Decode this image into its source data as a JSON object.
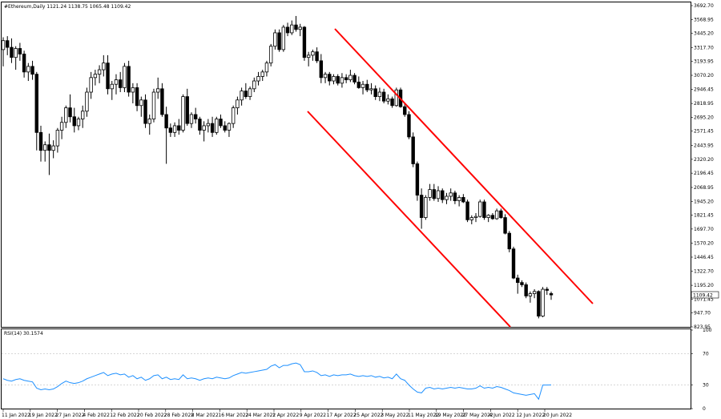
{
  "header": {
    "title": "#Ethereum,Daily  1121.24 1138.75 1065.48 1109.42",
    "rsi_label": "RSI(14) 30.1574",
    "last_price": "1109.42"
  },
  "colors": {
    "bull": "#ffffff",
    "bear": "#000000",
    "channel": "#ff0000",
    "rsi_line": "#1e90ff",
    "grid": "#c0c0c0",
    "last_price_bg": "#ffffff"
  },
  "chart_data": [
    {
      "type": "candlestick",
      "title": "#Ethereum,Daily  1121.24 1138.75 1065.48 1109.42",
      "y_ticks": [
        "3692.70",
        "3568.95",
        "3445.20",
        "3317.70",
        "3193.95",
        "3070.20",
        "2946.45",
        "2818.95",
        "2695.20",
        "2571.45",
        "2443.95",
        "2320.20",
        "2196.45",
        "2068.95",
        "1945.20",
        "1821.45",
        "1697.70",
        "1570.20",
        "1446.45",
        "1322.70",
        "1195.20",
        "1071.45",
        "947.70",
        "823.95"
      ],
      "ylim": [
        823.95,
        3692.7
      ],
      "x_ticks": [
        "11 Jan 2022",
        "19 Jan 2022",
        "27 Jan 2022",
        "4 Feb 2022",
        "12 Feb 2022",
        "20 Feb 2022",
        "28 Feb 2022",
        "8 Mar 2022",
        "16 Mar 2022",
        "24 Mar 2022",
        "1 Apr 2022",
        "9 Apr 2022",
        "17 Apr 2022",
        "25 Apr 2022",
        "3 May 2022",
        "11 May 2022",
        "19 May 2022",
        "27 May 2022",
        "4 Jun 2022",
        "12 Jun 2022",
        "20 Jun 2022"
      ],
      "last_price": 1109.42,
      "ohlc": [
        [
          3300,
          3410,
          3150,
          3380
        ],
        [
          3380,
          3420,
          3250,
          3320
        ],
        [
          3320,
          3400,
          3180,
          3230
        ],
        [
          3230,
          3330,
          3120,
          3310
        ],
        [
          3310,
          3360,
          3200,
          3260
        ],
        [
          3260,
          3290,
          3050,
          3100
        ],
        [
          3100,
          3180,
          3020,
          3150
        ],
        [
          3150,
          3200,
          3030,
          3080
        ],
        [
          3080,
          3100,
          2400,
          2560
        ],
        [
          2560,
          2620,
          2300,
          2400
        ],
        [
          2400,
          2480,
          2300,
          2450
        ],
        [
          2450,
          2550,
          2180,
          2400
        ],
        [
          2400,
          2490,
          2330,
          2440
        ],
        [
          2440,
          2600,
          2380,
          2580
        ],
        [
          2580,
          2700,
          2500,
          2650
        ],
        [
          2650,
          2800,
          2600,
          2780
        ],
        [
          2780,
          2900,
          2650,
          2700
        ],
        [
          2700,
          2780,
          2560,
          2620
        ],
        [
          2620,
          2700,
          2580,
          2680
        ],
        [
          2680,
          2800,
          2600,
          2750
        ],
        [
          2750,
          2960,
          2700,
          2920
        ],
        [
          2920,
          3100,
          2860,
          3050
        ],
        [
          3050,
          3120,
          2980,
          3080
        ],
        [
          3080,
          3160,
          3000,
          3120
        ],
        [
          3120,
          3250,
          3060,
          3180
        ],
        [
          3180,
          3250,
          2900,
          2950
        ],
        [
          2950,
          3020,
          2850,
          2990
        ],
        [
          2990,
          3080,
          2900,
          3030
        ],
        [
          3030,
          3100,
          2920,
          2960
        ],
        [
          2960,
          3180,
          2920,
          3150
        ],
        [
          3150,
          3200,
          2880,
          2920
        ],
        [
          2920,
          3000,
          2820,
          2960
        ],
        [
          2960,
          3000,
          2750,
          2800
        ],
        [
          2800,
          2880,
          2700,
          2850
        ],
        [
          2850,
          2900,
          2600,
          2640
        ],
        [
          2640,
          2720,
          2540,
          2680
        ],
        [
          2680,
          2950,
          2650,
          2920
        ],
        [
          2920,
          3050,
          2860,
          2950
        ],
        [
          2950,
          3000,
          2700,
          2720
        ],
        [
          2720,
          2790,
          2280,
          2600
        ],
        [
          2600,
          2640,
          2520,
          2560
        ],
        [
          2560,
          2650,
          2520,
          2620
        ],
        [
          2620,
          2680,
          2540,
          2580
        ],
        [
          2580,
          2900,
          2560,
          2880
        ],
        [
          2880,
          2950,
          2620,
          2640
        ],
        [
          2640,
          2740,
          2600,
          2720
        ],
        [
          2720,
          2780,
          2640,
          2680
        ],
        [
          2680,
          2700,
          2540,
          2580
        ],
        [
          2580,
          2660,
          2480,
          2620
        ],
        [
          2620,
          2680,
          2560,
          2640
        ],
        [
          2640,
          2700,
          2520,
          2560
        ],
        [
          2560,
          2700,
          2540,
          2680
        ],
        [
          2680,
          2720,
          2600,
          2620
        ],
        [
          2620,
          2660,
          2560,
          2580
        ],
        [
          2580,
          2650,
          2520,
          2640
        ],
        [
          2640,
          2800,
          2600,
          2780
        ],
        [
          2780,
          2880,
          2720,
          2850
        ],
        [
          2850,
          2960,
          2800,
          2930
        ],
        [
          2930,
          3000,
          2860,
          2880
        ],
        [
          2880,
          2970,
          2850,
          2950
        ],
        [
          2950,
          3050,
          2920,
          3020
        ],
        [
          3020,
          3100,
          2980,
          3060
        ],
        [
          3060,
          3120,
          3020,
          3100
        ],
        [
          3100,
          3200,
          3060,
          3180
        ],
        [
          3180,
          3350,
          3150,
          3330
        ],
        [
          3330,
          3480,
          3300,
          3450
        ],
        [
          3450,
          3480,
          3280,
          3300
        ],
        [
          3300,
          3520,
          3280,
          3500
        ],
        [
          3500,
          3540,
          3420,
          3450
        ],
        [
          3450,
          3560,
          3430,
          3520
        ],
        [
          3520,
          3600,
          3460,
          3480
        ],
        [
          3480,
          3530,
          3420,
          3500
        ],
        [
          3500,
          3510,
          3200,
          3230
        ],
        [
          3230,
          3280,
          3150,
          3250
        ],
        [
          3250,
          3300,
          3200,
          3280
        ],
        [
          3280,
          3320,
          3180,
          3200
        ],
        [
          3200,
          3260,
          3000,
          3050
        ],
        [
          3050,
          3100,
          3000,
          3080
        ],
        [
          3080,
          3100,
          2980,
          3020
        ],
        [
          3020,
          3080,
          2990,
          3060
        ],
        [
          3060,
          3080,
          2980,
          3000
        ],
        [
          3000,
          3090,
          2960,
          3050
        ],
        [
          3050,
          3080,
          3000,
          3030
        ],
        [
          3030,
          3120,
          3010,
          3070
        ],
        [
          3070,
          3090,
          2990,
          3010
        ],
        [
          3010,
          3060,
          2950,
          2960
        ],
        [
          2960,
          3020,
          2900,
          2990
        ],
        [
          2990,
          3030,
          2920,
          2940
        ],
        [
          2940,
          3000,
          2900,
          2950
        ],
        [
          2950,
          2980,
          2850,
          2880
        ],
        [
          2880,
          2960,
          2840,
          2920
        ],
        [
          2920,
          2950,
          2820,
          2840
        ],
        [
          2840,
          2900,
          2810,
          2860
        ],
        [
          2860,
          2880,
          2780,
          2800
        ],
        [
          2800,
          2960,
          2790,
          2940
        ],
        [
          2940,
          2960,
          2780,
          2790
        ],
        [
          2790,
          2820,
          2700,
          2720
        ],
        [
          2720,
          2750,
          2500,
          2520
        ],
        [
          2520,
          2560,
          2250,
          2280
        ],
        [
          2280,
          2300,
          1950,
          2000
        ],
        [
          2000,
          2060,
          1700,
          1800
        ],
        [
          1800,
          2000,
          1780,
          1980
        ],
        [
          1980,
          2100,
          1950,
          2050
        ],
        [
          2050,
          2100,
          1950,
          1970
        ],
        [
          1970,
          2080,
          1940,
          2040
        ],
        [
          2040,
          2060,
          1930,
          1960
        ],
        [
          1960,
          2020,
          1920,
          1990
        ],
        [
          1990,
          2060,
          1950,
          2020
        ],
        [
          2020,
          2040,
          1920,
          1950
        ],
        [
          1950,
          2000,
          1900,
          1980
        ],
        [
          1980,
          2010,
          1930,
          1940
        ],
        [
          1940,
          1960,
          1760,
          1780
        ],
        [
          1780,
          1820,
          1740,
          1800
        ],
        [
          1800,
          1840,
          1760,
          1810
        ],
        [
          1810,
          1960,
          1800,
          1940
        ],
        [
          1940,
          1960,
          1780,
          1800
        ],
        [
          1800,
          1830,
          1760,
          1820
        ],
        [
          1820,
          1840,
          1780,
          1790
        ],
        [
          1790,
          1880,
          1780,
          1860
        ],
        [
          1860,
          1880,
          1790,
          1800
        ],
        [
          1800,
          1830,
          1650,
          1660
        ],
        [
          1660,
          1680,
          1490,
          1520
        ],
        [
          1520,
          1540,
          1250,
          1260
        ],
        [
          1260,
          1290,
          1120,
          1220
        ],
        [
          1220,
          1240,
          1180,
          1200
        ],
        [
          1200,
          1220,
          1080,
          1100
        ],
        [
          1100,
          1140,
          1040,
          1120
        ],
        [
          1120,
          1160,
          1080,
          1140
        ],
        [
          1140,
          1150,
          900,
          920
        ],
        [
          920,
          1180,
          910,
          1160
        ],
        [
          1160,
          1180,
          1110,
          1150
        ],
        [
          1121.24,
          1138.75,
          1065.48,
          1109.42
        ]
      ]
    },
    {
      "type": "line",
      "title": "RSI(14) 30.1574",
      "y_ticks": [
        "100",
        "70",
        "30",
        "0"
      ],
      "ylim": [
        0,
        100
      ],
      "series": [
        {
          "values": [
            38,
            36,
            35,
            37,
            38,
            36,
            35,
            34,
            26,
            24,
            25,
            24,
            25,
            28,
            32,
            35,
            33,
            32,
            33,
            35,
            38,
            40,
            42,
            44,
            46,
            42,
            44,
            45,
            43,
            44,
            40,
            42,
            38,
            40,
            36,
            38,
            42,
            43,
            38,
            40,
            37,
            38,
            37,
            43,
            38,
            39,
            38,
            36,
            38,
            39,
            38,
            40,
            39,
            38,
            39,
            42,
            44,
            46,
            45,
            46,
            47,
            48,
            49,
            50,
            54,
            56,
            52,
            55,
            55,
            57,
            58,
            56,
            47,
            47,
            48,
            46,
            42,
            43,
            41,
            43,
            42,
            43,
            43,
            44,
            42,
            41,
            42,
            41,
            42,
            40,
            41,
            39,
            40,
            38,
            44,
            38,
            36,
            30,
            25,
            21,
            20,
            26,
            27,
            25,
            26,
            25,
            26,
            27,
            26,
            27,
            26,
            25,
            25,
            26,
            29,
            26,
            27,
            26,
            28,
            27,
            25,
            23,
            20,
            19,
            18,
            17,
            18,
            19,
            12,
            30,
            30,
            30.16
          ]
        }
      ]
    }
  ]
}
